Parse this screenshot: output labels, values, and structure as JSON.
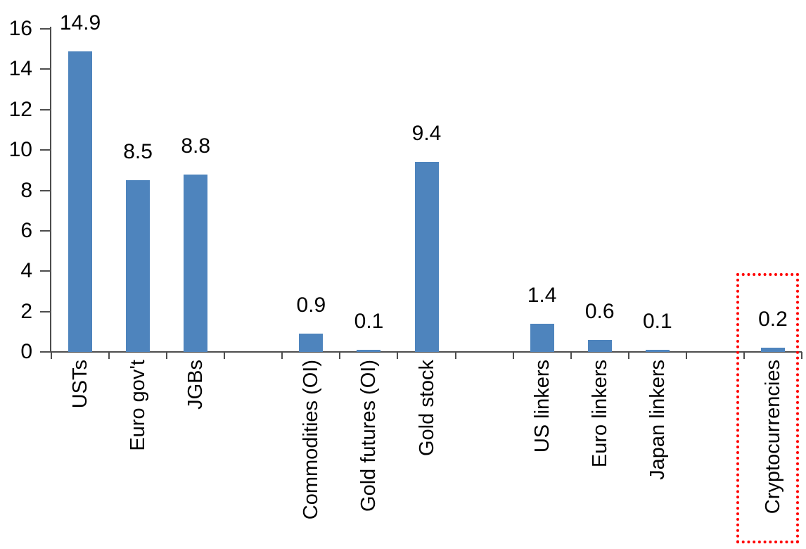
{
  "chart_data": {
    "type": "bar",
    "title": "",
    "categories": [
      "USTs",
      "Euro gov't",
      "JGBs",
      "Commodities (OI)",
      "Gold futures (OI)",
      "Gold stock",
      "US linkers",
      "Euro linkers",
      "Japan linkers",
      "Cryptocurrencies"
    ],
    "values": [
      14.9,
      8.5,
      8.8,
      0.9,
      0.1,
      9.4,
      1.4,
      0.6,
      0.1,
      0.2
    ],
    "data_labels": [
      "14.9",
      "8.5",
      "8.8",
      "0.9",
      "0.1",
      "9.4",
      "1.4",
      "0.6",
      "0.1",
      "0.2"
    ],
    "slot_index": [
      0,
      1,
      2,
      4,
      5,
      6,
      8,
      9,
      10,
      12
    ],
    "total_slots": 13,
    "y_ticks": [
      0,
      2,
      4,
      6,
      8,
      10,
      12,
      14,
      16
    ],
    "ylim": [
      0,
      16
    ],
    "xlabel": "",
    "ylabel": "",
    "grid": false,
    "legend": "none",
    "colors": {
      "bar": "#4e84bd",
      "axis": "#4d4d4d",
      "text": "#000000",
      "highlight": "#ff0000"
    },
    "highlight": {
      "target_category": "Cryptocurrencies",
      "shape": "dotted-rectangle",
      "color": "#ff0000"
    }
  }
}
